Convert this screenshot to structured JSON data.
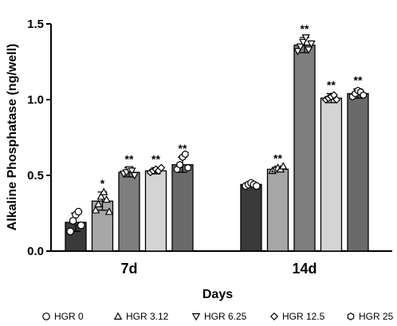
{
  "chart_data": {
    "type": "bar",
    "ylabel": "Alkaline Phosphatase  (ng/well)",
    "xlabel": "Days",
    "ylim": [
      0,
      1.5
    ],
    "yticks": [
      "0.0",
      "0.5",
      "1.0",
      "1.5"
    ],
    "categories": [
      "7d",
      "14d"
    ],
    "grid": false,
    "legend_position": "bottom",
    "series": [
      {
        "name": "HGR 0",
        "marker": "circle",
        "color": "#3a3a3a",
        "values": [
          0.19,
          0.44
        ],
        "errors": [
          0.06,
          0.015
        ],
        "significance": [
          "",
          ""
        ],
        "points": [
          [
            0.13,
            0.2,
            0.24,
            0.26,
            0.17
          ],
          [
            0.43,
            0.44,
            0.45,
            0.44,
            0.43
          ]
        ]
      },
      {
        "name": "HGR 3.12",
        "marker": "triangle-up",
        "color": "#a7a7a7",
        "values": [
          0.33,
          0.54
        ],
        "errors": [
          0.06,
          0.015
        ],
        "significance": [
          "*",
          "**"
        ],
        "points": [
          [
            0.27,
            0.31,
            0.36,
            0.39,
            0.34,
            0.26
          ],
          [
            0.53,
            0.54,
            0.55,
            0.54,
            0.56
          ]
        ]
      },
      {
        "name": "HGR 6.25",
        "marker": "triangle-down",
        "color": "#7e7e7e",
        "values": [
          0.52,
          1.36
        ],
        "errors": [
          0.03,
          0.05
        ],
        "significance": [
          "**",
          "**"
        ],
        "points": [
          [
            0.51,
            0.52,
            0.54,
            0.53,
            0.5
          ],
          [
            1.32,
            1.35,
            1.38,
            1.41,
            1.33,
            1.37
          ]
        ]
      },
      {
        "name": "HGR 12.5",
        "marker": "diamond",
        "color": "#d4d4d4",
        "values": [
          0.53,
          1.01
        ],
        "errors": [
          0.02,
          0.03
        ],
        "significance": [
          "**",
          "**"
        ],
        "points": [
          [
            0.52,
            0.53,
            0.54,
            0.53,
            0.55
          ],
          [
            1.0,
            1.01,
            1.02,
            1.03,
            1.0
          ]
        ]
      },
      {
        "name": "HGR 25",
        "marker": "hexagon",
        "color": "#6a6a6a",
        "values": [
          0.57,
          1.04
        ],
        "errors": [
          0.05,
          0.03
        ],
        "significance": [
          "**",
          "**"
        ],
        "points": [
          [
            0.54,
            0.57,
            0.62,
            0.64,
            0.55
          ],
          [
            1.02,
            1.04,
            1.06,
            1.05,
            1.03
          ]
        ]
      }
    ]
  }
}
